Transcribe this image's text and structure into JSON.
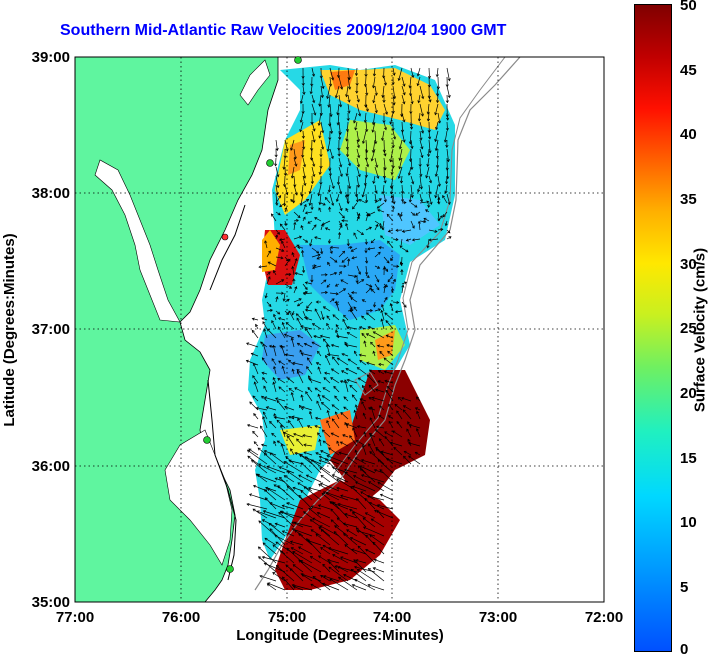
{
  "title": "Southern Mid-Atlantic Raw Velocities 2009/12/04 1900 GMT",
  "xlabel": "Longitude (Degrees:Minutes)",
  "ylabel": "Latitude (Degrees:Minutes)",
  "x_ticks": [
    "77:00",
    "76:00",
    "75:00",
    "74:00",
    "73:00",
    "72:00"
  ],
  "y_ticks": [
    "39:00",
    "38:00",
    "37:00",
    "36:00",
    "35:00"
  ],
  "colorbar": {
    "label": "Surface Velocity (cm/s)",
    "ticks": [
      "50",
      "45",
      "40",
      "35",
      "30",
      "25",
      "20",
      "15",
      "10",
      "5",
      "0"
    ],
    "range": [
      0,
      50
    ]
  },
  "colors": {
    "land": "#5ff59f",
    "title": "#0000ff",
    "grid": "#000000",
    "bathymetry": "#8a8a8a",
    "station": "#22cc33",
    "station_alt": "#ff3030"
  },
  "icons": [
    "land-mass",
    "velocity-field",
    "velocity-arrows",
    "coastal-stations",
    "colorbar"
  ]
}
